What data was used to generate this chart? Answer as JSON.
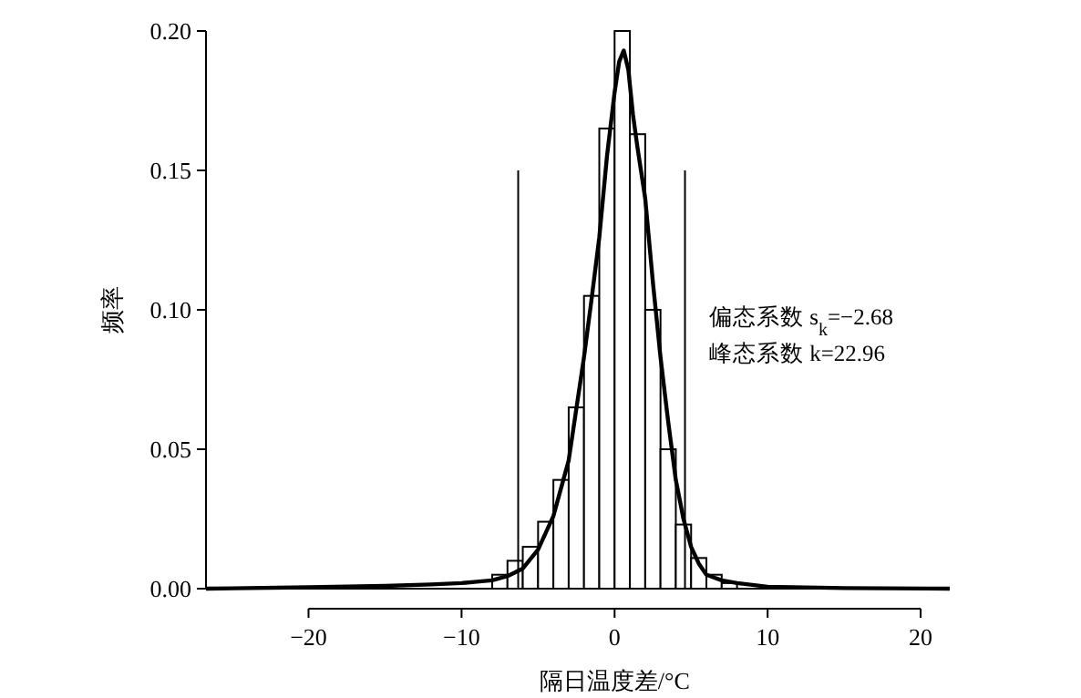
{
  "chart_data": {
    "type": "histogram",
    "xlabel": "隔日温度差/°C",
    "ylabel": "频率",
    "bins": [
      -8,
      -7,
      -6,
      -5,
      -4,
      -3,
      -2,
      -1,
      0,
      1,
      2,
      3,
      4,
      5,
      6,
      7,
      8
    ],
    "values": [
      0.005,
      0.01,
      0.015,
      0.024,
      0.039,
      0.065,
      0.105,
      0.165,
      0.2,
      0.163,
      0.1,
      0.05,
      0.023,
      0.011,
      0.005,
      0.002
    ],
    "color": "#000000",
    "series": [
      {
        "type": "line",
        "color": "#000000",
        "x": [
          -26.7,
          -20,
          -15,
          -12,
          -10,
          -9,
          -8,
          -7,
          -6,
          -5,
          -4,
          -3,
          -2,
          -1.5,
          -1,
          -0.5,
          0,
          0.3,
          0.6,
          0.9,
          1.2,
          1.5,
          2,
          2.5,
          3,
          3.5,
          4,
          4.5,
          5,
          5.5,
          6,
          7,
          8,
          10,
          15,
          21.9
        ],
        "values": [
          0,
          0.0005,
          0.001,
          0.0015,
          0.002,
          0.0025,
          0.003,
          0.0045,
          0.0072,
          0.014,
          0.026,
          0.046,
          0.083,
          0.104,
          0.126,
          0.155,
          0.178,
          0.189,
          0.193,
          0.186,
          0.17,
          0.158,
          0.14,
          0.11,
          0.083,
          0.06,
          0.039,
          0.025,
          0.015,
          0.009,
          0.005,
          0.003,
          0.002,
          0.0007,
          0.0002,
          0
        ]
      },
      {
        "type": "line",
        "color": "#000000",
        "x": [
          -6.3,
          -6.3
        ],
        "values": [
          0,
          0.15
        ]
      },
      {
        "type": "line",
        "color": "#000000",
        "x": [
          4.6,
          4.6
        ],
        "values": [
          0,
          0.15
        ]
      }
    ],
    "annotations": [
      "偏态系数 s$_{k}$=−2.68",
      "峰态系数 k=22.96"
    ],
    "xlim": [
      -26.7,
      21.9
    ],
    "ylim": [
      0,
      0.2
    ],
    "xticks": [
      {
        "value": -20,
        "label": "−20"
      },
      {
        "value": -10,
        "label": "−10"
      },
      0,
      10,
      20
    ],
    "yticks": [
      {
        "value": 0,
        "label": "0.00"
      },
      {
        "value": 0.05,
        "label": "0.05"
      },
      {
        "value": 0.1,
        "label": "0.10"
      },
      {
        "value": 0.15,
        "label": "0.15"
      },
      {
        "value": 0.2,
        "label": "0.20"
      }
    ],
    "grid": false
  }
}
